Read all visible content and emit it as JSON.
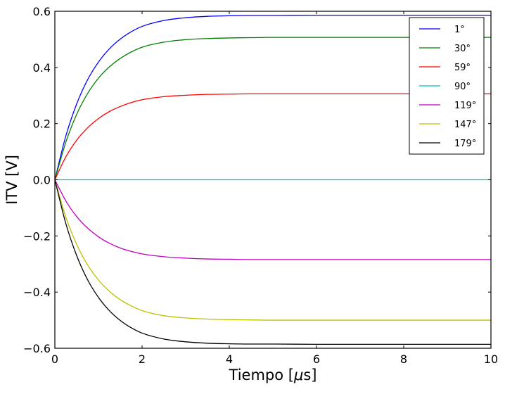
{
  "chart_data": {
    "type": "line",
    "title": "",
    "xlabel": "Tiempo [",
    "xlabel_mu": "μ",
    "xlabel_suffix": "s]",
    "ylabel": "ITV [V]",
    "xlim": [
      0,
      10
    ],
    "ylim": [
      -0.6,
      0.6
    ],
    "x_ticks": [
      0,
      2,
      4,
      6,
      8,
      10
    ],
    "y_ticks": [
      -0.6,
      -0.4,
      -0.2,
      0.0,
      0.2,
      0.4,
      0.6
    ],
    "x_tick_labels": [
      "0",
      "2",
      "4",
      "6",
      "8",
      "10"
    ],
    "y_tick_labels": [
      "−0.6",
      "−0.4",
      "−0.2",
      "0.0",
      "0.2",
      "0.4",
      "0.6"
    ],
    "grid": false,
    "legend_position": "top-right",
    "x": [
      0,
      0.25,
      0.5,
      0.75,
      1,
      1.25,
      1.5,
      1.75,
      2,
      2.5,
      3,
      3.5,
      4,
      4.5,
      5,
      6,
      7,
      8,
      9,
      10
    ],
    "series": [
      {
        "name": "1°",
        "color": "#0000ff",
        "values": [
          0,
          0.155,
          0.27,
          0.356,
          0.419,
          0.466,
          0.501,
          0.527,
          0.546,
          0.567,
          0.577,
          0.582,
          0.584,
          0.585,
          0.585,
          0.586,
          0.586,
          0.586,
          0.586,
          0.586
        ]
      },
      {
        "name": "30°",
        "color": "#008000",
        "values": [
          0,
          0.133,
          0.233,
          0.307,
          0.362,
          0.402,
          0.432,
          0.455,
          0.472,
          0.49,
          0.499,
          0.503,
          0.505,
          0.506,
          0.507,
          0.507,
          0.507,
          0.507,
          0.507,
          0.507
        ]
      },
      {
        "name": "59°",
        "color": "#ff0000",
        "values": [
          0,
          0.081,
          0.141,
          0.185,
          0.218,
          0.243,
          0.261,
          0.275,
          0.285,
          0.296,
          0.301,
          0.304,
          0.305,
          0.306,
          0.306,
          0.306,
          0.306,
          0.306,
          0.306,
          0.306
        ]
      },
      {
        "name": "90°",
        "color": "#00bfbf",
        "values": [
          0,
          0,
          0,
          0,
          0,
          0,
          0,
          0,
          0,
          0,
          0,
          0,
          0,
          0,
          0,
          0,
          0,
          0,
          0,
          0
        ]
      },
      {
        "name": "119°",
        "color": "#bf00bf",
        "values": [
          0,
          -0.075,
          -0.131,
          -0.172,
          -0.203,
          -0.226,
          -0.243,
          -0.255,
          -0.264,
          -0.274,
          -0.279,
          -0.282,
          -0.283,
          -0.284,
          -0.284,
          -0.284,
          -0.284,
          -0.284,
          -0.284,
          -0.284
        ]
      },
      {
        "name": "147°",
        "color": "#bfbf00",
        "values": [
          0,
          -0.132,
          -0.23,
          -0.303,
          -0.357,
          -0.397,
          -0.427,
          -0.449,
          -0.466,
          -0.484,
          -0.492,
          -0.496,
          -0.498,
          -0.499,
          -0.5,
          -0.5,
          -0.5,
          -0.5,
          -0.5,
          -0.5
        ]
      },
      {
        "name": "179°",
        "color": "#000000",
        "values": [
          0,
          -0.155,
          -0.27,
          -0.356,
          -0.419,
          -0.466,
          -0.501,
          -0.527,
          -0.546,
          -0.567,
          -0.577,
          -0.582,
          -0.584,
          -0.585,
          -0.585,
          -0.586,
          -0.586,
          -0.586,
          -0.586,
          -0.586
        ]
      }
    ]
  }
}
